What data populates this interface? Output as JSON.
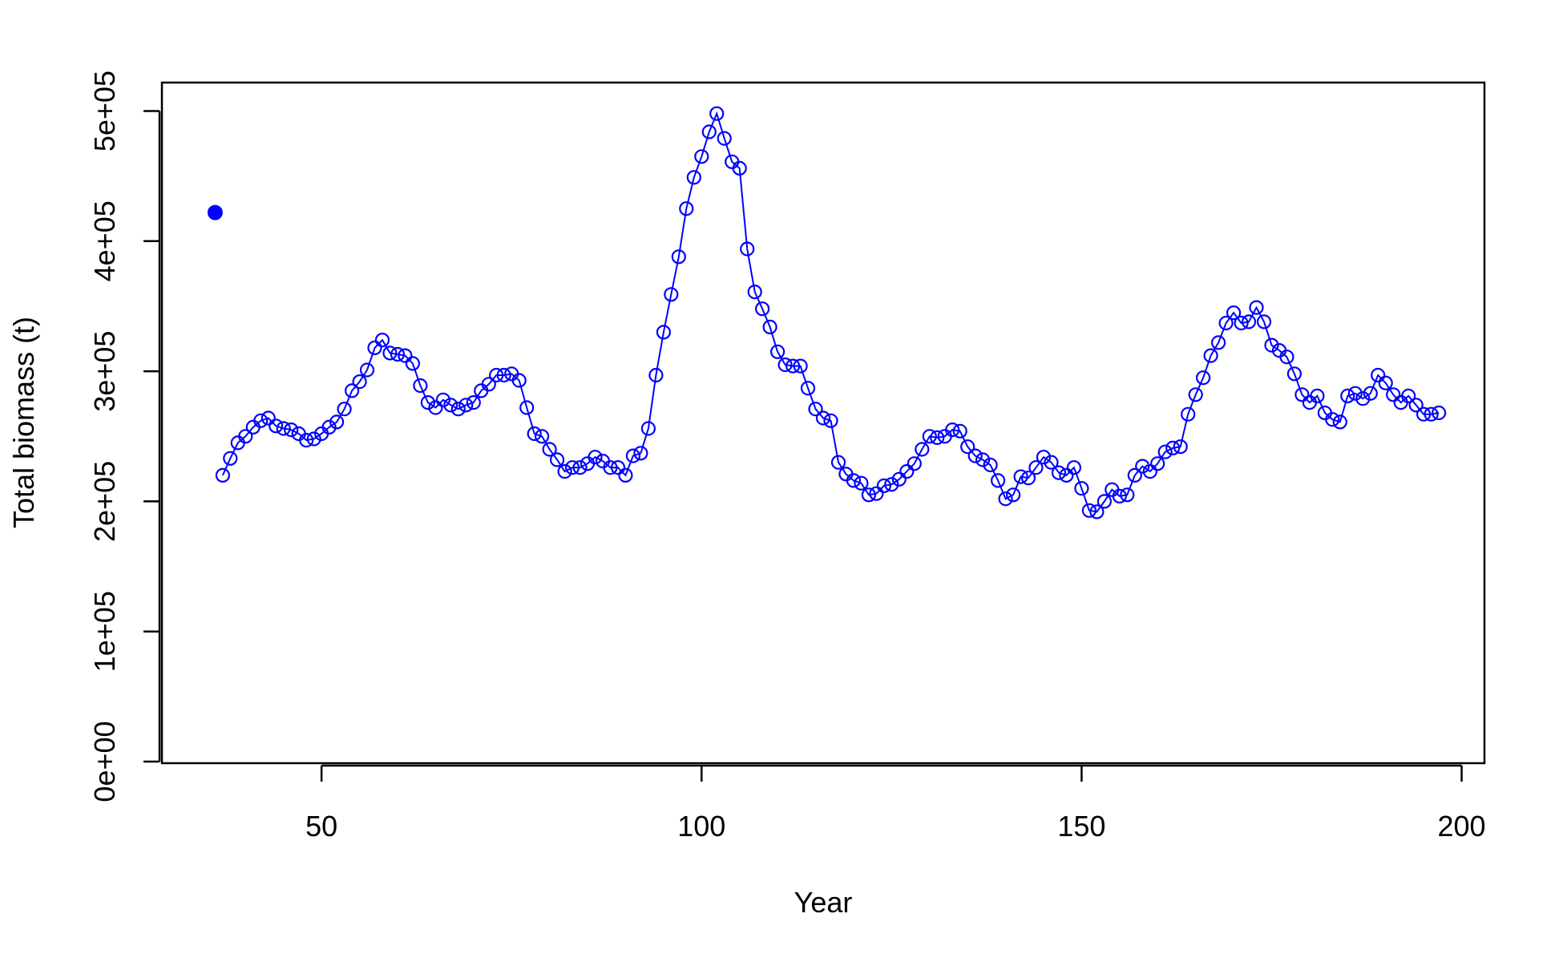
{
  "chart_data": {
    "type": "line",
    "title": "",
    "xlabel": "Year",
    "ylabel": "Total biomass (t)",
    "xlim": [
      29,
      203
    ],
    "ylim": [
      0,
      520000
    ],
    "grid": false,
    "colors": {
      "series": "#0000ff",
      "axis": "#000000"
    },
    "x_ticks": [
      {
        "value": 50,
        "label": "50"
      },
      {
        "value": 100,
        "label": "100"
      },
      {
        "value": 150,
        "label": "150"
      },
      {
        "value": 200,
        "label": "200"
      }
    ],
    "y_ticks": [
      {
        "value": 0,
        "label": "0e+00"
      },
      {
        "value": 100000,
        "label": "1e+05"
      },
      {
        "value": 200000,
        "label": "2e+05"
      },
      {
        "value": 300000,
        "label": "3e+05"
      },
      {
        "value": 400000,
        "label": "4e+05"
      },
      {
        "value": 500000,
        "label": "5e+05"
      }
    ],
    "initial_point": {
      "x": 36,
      "y": 422000
    },
    "series": [
      {
        "x_start": 37,
        "marker": "open-circle",
        "values": [
          220000,
          233000,
          245000,
          250000,
          257000,
          262000,
          264000,
          258000,
          256000,
          255000,
          252000,
          247000,
          248000,
          252000,
          257000,
          261000,
          271000,
          285000,
          292000,
          301000,
          318000,
          324000,
          314000,
          313000,
          312000,
          306000,
          289000,
          276000,
          272000,
          278000,
          274000,
          271000,
          274000,
          276000,
          285000,
          290000,
          297000,
          297000,
          298000,
          293000,
          272000,
          252000,
          250000,
          240000,
          232000,
          223000,
          226000,
          226000,
          229000,
          234000,
          231000,
          226000,
          226000,
          220000,
          235000,
          237000,
          256000,
          297000,
          330000,
          359000,
          388000,
          425000,
          449000,
          465000,
          484000,
          498000,
          479000,
          461000,
          456000,
          394000,
          361000,
          348000,
          334000,
          315000,
          305000,
          304000,
          304000,
          287000,
          271000,
          264000,
          262000,
          230000,
          221000,
          216000,
          214000,
          205000,
          206000,
          212000,
          213000,
          217000,
          223000,
          229000,
          240000,
          250000,
          249000,
          250000,
          255000,
          254000,
          242000,
          235000,
          232000,
          228000,
          216000,
          202000,
          205000,
          219000,
          218000,
          226000,
          234000,
          230000,
          222000,
          220000,
          226000,
          210000,
          193000,
          192000,
          200000,
          209000,
          204000,
          205000,
          220000,
          227000,
          223000,
          229000,
          238000,
          241000,
          242000,
          267000,
          282000,
          295000,
          312000,
          322000,
          337000,
          345000,
          337000,
          338000,
          349000,
          338000,
          320000,
          316000,
          311000,
          298000,
          282000,
          276000,
          281000,
          268000,
          263000,
          261000,
          281000,
          283000,
          279000,
          283000,
          297000,
          291000,
          282000,
          276000,
          281000,
          274000,
          267000,
          267000,
          268000
        ]
      }
    ]
  }
}
